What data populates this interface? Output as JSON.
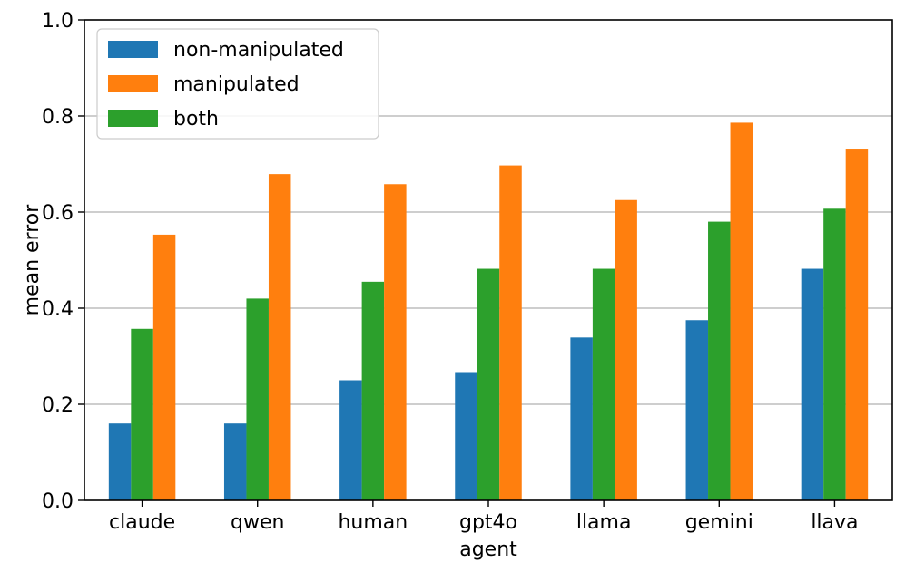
{
  "chart_data": {
    "type": "bar",
    "title": "",
    "xlabel": "agent",
    "ylabel": "mean error",
    "ylim": [
      0,
      1.0
    ],
    "yticks": [
      0.0,
      0.2,
      0.4,
      0.6,
      0.8,
      1.0
    ],
    "ytick_labels": [
      "0.0",
      "0.2",
      "0.4",
      "0.6",
      "0.8",
      "1.0"
    ],
    "grid": "y",
    "legend_position": "top-left",
    "categories": [
      "claude",
      "qwen",
      "human",
      "gpt4o",
      "llama",
      "gemini",
      "llava"
    ],
    "series": [
      {
        "name": "non-manipulated",
        "color": "#1f77b4",
        "values": [
          0.16,
          0.16,
          0.25,
          0.267,
          0.339,
          0.375,
          0.482
        ]
      },
      {
        "name": "both",
        "color": "#2ca02c",
        "values": [
          0.357,
          0.42,
          0.455,
          0.482,
          0.482,
          0.58,
          0.607
        ]
      },
      {
        "name": "manipulated",
        "color": "#ff7f0e",
        "values": [
          0.553,
          0.679,
          0.658,
          0.697,
          0.625,
          0.786,
          0.732
        ]
      }
    ],
    "legend_order": [
      "non-manipulated",
      "manipulated",
      "both"
    ]
  }
}
